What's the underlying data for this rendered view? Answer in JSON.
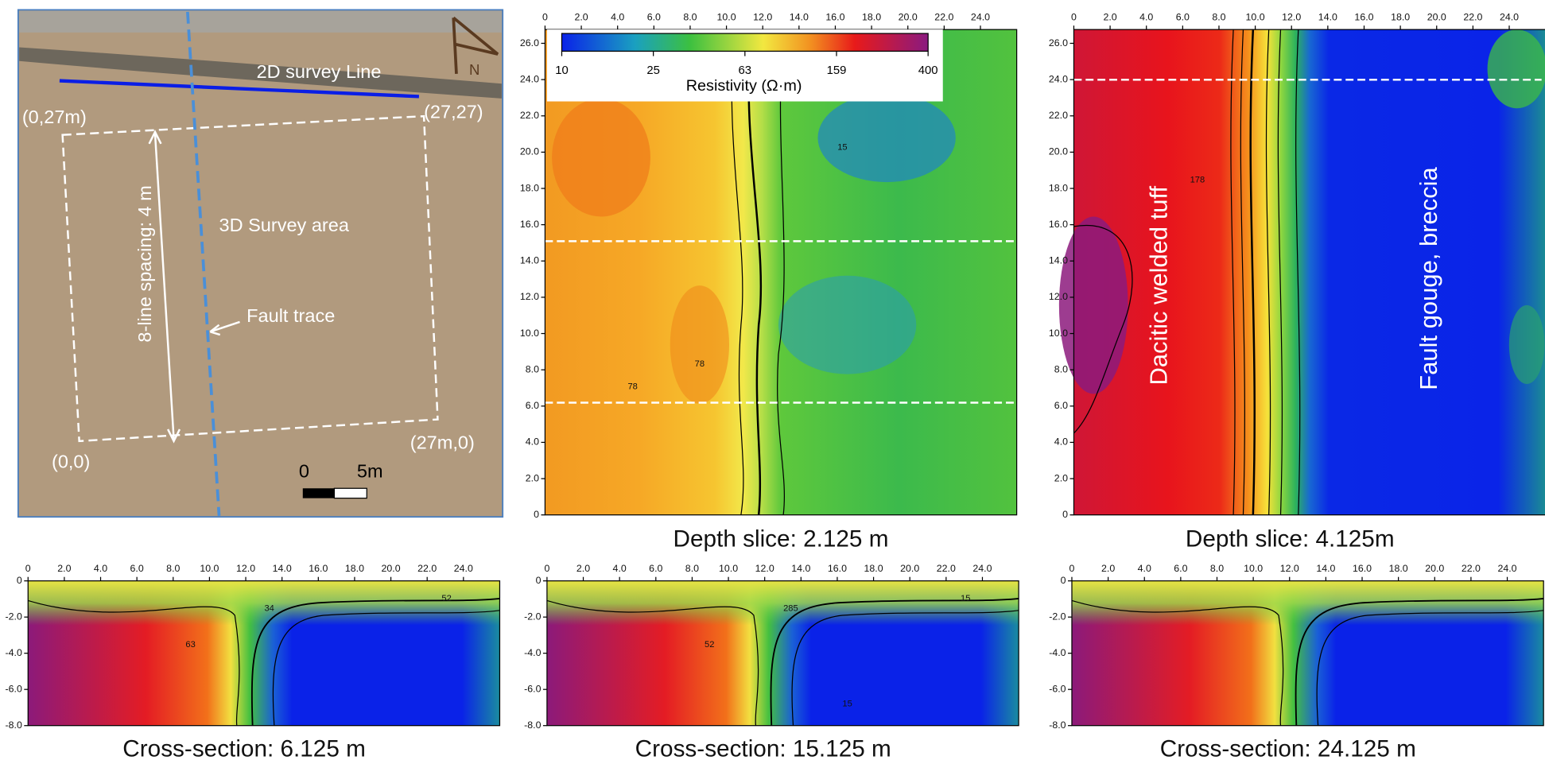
{
  "photo": {
    "survey_line": "2D survey Line",
    "corner_top_left": "(0,27m)",
    "corner_top_right": "(27,27)",
    "survey_area": "3D Survey area",
    "spacing": "8-line spacing: 4 m",
    "fault_trace": "Fault trace",
    "corner_bottom_left": "(0,0)",
    "corner_bottom_right": "(27m,0)",
    "scale_zero": "0",
    "scale_length": "5m",
    "north": "N"
  },
  "colorbar": {
    "ticks": [
      "10",
      "25",
      "63",
      "159",
      "400"
    ],
    "title": "Resistivity (Ω·m)"
  },
  "depth_slices": [
    {
      "caption": "Depth slice: 2.125 m",
      "xticks": [
        "0",
        "2.0",
        "4.0",
        "6.0",
        "8.0",
        "10.0",
        "12.0",
        "14.0",
        "16.0",
        "18.0",
        "20.0",
        "22.0",
        "24.0"
      ],
      "yticks": [
        "0",
        "2.0",
        "4.0",
        "6.0",
        "8.0",
        "10.0",
        "12.0",
        "14.0",
        "16.0",
        "18.0",
        "20.0",
        "22.0",
        "24.0",
        "26.0"
      ],
      "contour_labels": [
        "15",
        "78",
        "78"
      ]
    },
    {
      "caption": "Depth slice: 4.125m",
      "xticks": [
        "0",
        "2.0",
        "4.0",
        "6.0",
        "8.0",
        "10.0",
        "12.0",
        "14.0",
        "16.0",
        "18.0",
        "20.0",
        "22.0",
        "24.0"
      ],
      "yticks": [
        "0",
        "2.0",
        "4.0",
        "6.0",
        "8.0",
        "10.0",
        "12.0",
        "14.0",
        "16.0",
        "18.0",
        "20.0",
        "22.0",
        "24.0",
        "26.0"
      ],
      "contour_labels": [
        "178"
      ],
      "annotations": [
        "Dacitic welded tuff",
        "Fault gouge, breccia"
      ]
    }
  ],
  "cross_sections": [
    {
      "caption": "Cross-section: 6.125 m",
      "xticks": [
        "0",
        "2.0",
        "4.0",
        "6.0",
        "8.0",
        "10.0",
        "12.0",
        "14.0",
        "16.0",
        "18.0",
        "20.0",
        "22.0",
        "24.0"
      ],
      "yticks": [
        "0",
        "-2.0",
        "-4.0",
        "-6.0",
        "-8.0"
      ],
      "contour_labels": [
        "63",
        "34",
        "52"
      ]
    },
    {
      "caption": "Cross-section: 15.125 m",
      "xticks": [
        "0",
        "2.0",
        "4.0",
        "6.0",
        "8.0",
        "10.0",
        "12.0",
        "14.0",
        "16.0",
        "18.0",
        "20.0",
        "22.0",
        "24.0"
      ],
      "yticks": [
        "0",
        "-2.0",
        "-4.0",
        "-6.0",
        "-8.0"
      ],
      "contour_labels": [
        "52",
        "285",
        "15",
        "15"
      ]
    },
    {
      "caption": "Cross-section: 24.125 m",
      "xticks": [
        "0",
        "2.0",
        "4.0",
        "6.0",
        "8.0",
        "10.0",
        "12.0",
        "14.0",
        "16.0",
        "18.0",
        "20.0",
        "22.0",
        "24.0"
      ],
      "yticks": [
        "0",
        "-2.0",
        "-4.0",
        "-6.0",
        "-8.0"
      ],
      "contour_labels": []
    }
  ]
}
